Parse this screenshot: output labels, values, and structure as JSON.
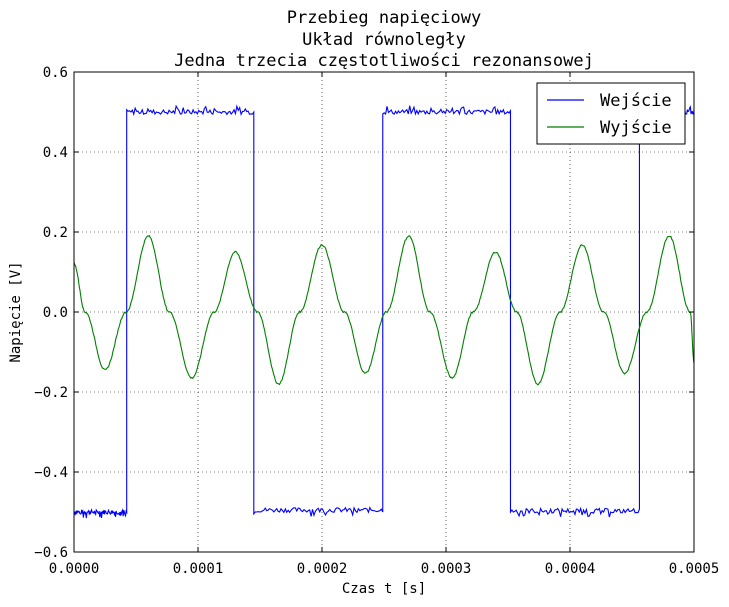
{
  "chart_data": {
    "type": "line",
    "title": [
      "Przebieg napięciowy",
      "Układ równoległy",
      "Jedna trzecia częstotliwości rezonansowej"
    ],
    "xlabel": "Czas t [s]",
    "ylabel": "Napięcie [V]",
    "xlim": [
      0.0,
      0.0005
    ],
    "ylim": [
      -0.6,
      0.6
    ],
    "xticks": [
      "0.0000",
      "0.0001",
      "0.0002",
      "0.0003",
      "0.0004",
      "0.0005"
    ],
    "yticks": [
      "−0.6",
      "−0.4",
      "−0.2",
      "0.0",
      "0.2",
      "0.4",
      "0.6"
    ],
    "grid": true,
    "legend_position": "top-right",
    "series": [
      {
        "name": "Wejście",
        "color": "#0000ff",
        "x": [
          0.0,
          4.25e-05,
          4.25e-05,
          0.000145,
          0.000145,
          0.0,
          0.000249,
          0.000249,
          0.000352,
          0.000352,
          0.000456,
          0.000456,
          0.0005
        ],
        "y": [
          -0.5,
          -0.5,
          0.5,
          0.5,
          -0.495,
          -0.495,
          -0.5,
          0.5,
          0.5,
          -0.495,
          -0.5,
          0.5,
          0.5
        ]
      },
      {
        "name": "Wyjście",
        "color": "#008000",
        "x": [
          0.0,
          9e-06,
          2.5e-05,
          4.2e-05,
          6e-05,
          7.7e-05,
          9.5e-05,
          0.000113,
          0.00013,
          0.000148,
          0.000165,
          0.000182,
          0.0002,
          0.000218,
          0.000235,
          0.000252,
          0.00027,
          0.000287,
          0.000305,
          0.000322,
          0.00034,
          0.000357,
          0.000374,
          0.000392,
          0.00041,
          0.000427,
          0.000444,
          0.000462,
          0.00048,
          0.000497,
          0.0005
        ],
        "y": [
          0.12,
          0.0,
          -0.145,
          0.0,
          0.19,
          0.0,
          -0.165,
          0.0,
          0.15,
          0.0,
          -0.18,
          0.0,
          0.168,
          0.0,
          -0.153,
          0.0,
          0.19,
          0.0,
          -0.165,
          0.0,
          0.15,
          0.0,
          -0.18,
          0.0,
          0.168,
          0.0,
          -0.153,
          0.0,
          0.19,
          0.0,
          -0.125
        ]
      }
    ]
  }
}
